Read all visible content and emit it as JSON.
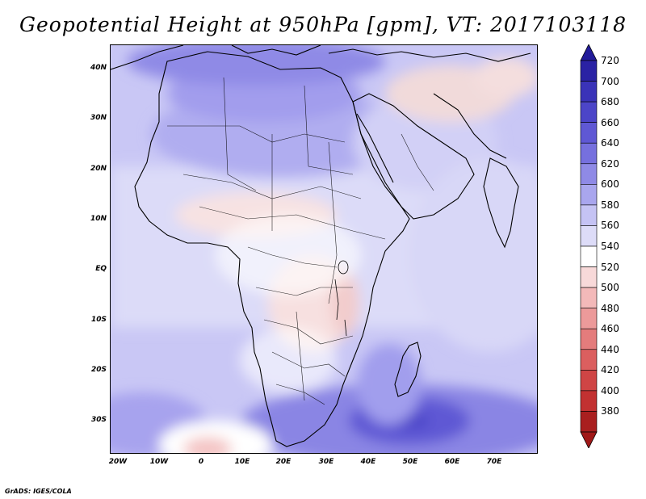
{
  "title": "Geopotential Height at 950hPa [gpm], VT: 2017103118",
  "footer": "GrADS: IGES/COLA",
  "map": {
    "variable": "Geopotential Height",
    "level": "950hPa",
    "units": "gpm",
    "valid_time": "2017103118",
    "lon_range": [
      -23,
      81
    ],
    "lat_range": [
      -37,
      45
    ],
    "lat_ticks": [
      {
        "value": 40,
        "label": "40N"
      },
      {
        "value": 30,
        "label": "30N"
      },
      {
        "value": 20,
        "label": "20N"
      },
      {
        "value": 10,
        "label": "10N"
      },
      {
        "value": 0,
        "label": "EQ"
      },
      {
        "value": -10,
        "label": "10S"
      },
      {
        "value": -20,
        "label": "20S"
      },
      {
        "value": -30,
        "label": "30S"
      }
    ],
    "lon_ticks": [
      {
        "value": -20,
        "label": "20W"
      },
      {
        "value": -10,
        "label": "10W"
      },
      {
        "value": 0,
        "label": "0"
      },
      {
        "value": 10,
        "label": "10E"
      },
      {
        "value": 20,
        "label": "20E"
      },
      {
        "value": 30,
        "label": "30E"
      },
      {
        "value": 40,
        "label": "40E"
      },
      {
        "value": 50,
        "label": "50E"
      },
      {
        "value": 60,
        "label": "60E"
      },
      {
        "value": 70,
        "label": "70E"
      }
    ]
  },
  "colorbar": {
    "levels": [
      "720",
      "700",
      "680",
      "660",
      "640",
      "620",
      "600",
      "580",
      "560",
      "540",
      "520",
      "500",
      "480",
      "460",
      "440",
      "420",
      "400",
      "380"
    ],
    "colors": [
      "#2a22a4",
      "#3a33b8",
      "#4c45c8",
      "#5f58d4",
      "#7670de",
      "#8f8ae6",
      "#a9a6ee",
      "#c5c3f4",
      "#dddcf8",
      "#ffffff",
      "#f8d9d9",
      "#f3b9b9",
      "#ec9a9a",
      "#e47c7c",
      "#db5f5f",
      "#cf4545",
      "#c23131",
      "#a91f1f"
    ],
    "top_arrow_color": "#231c9a",
    "bottom_arrow_color": "#a01818"
  }
}
